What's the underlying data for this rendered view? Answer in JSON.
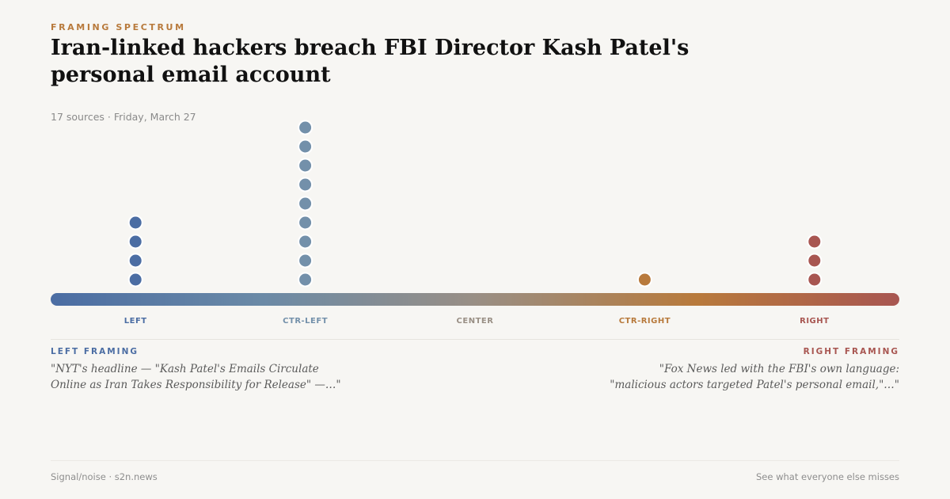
{
  "header": {
    "kicker": "FRAMING SPECTRUM",
    "title": "Iran-linked hackers breach FBI Director Kash Patel's personal email account",
    "meta": "17 sources · Friday, March 27"
  },
  "chart_data": {
    "type": "dot-strip",
    "categories": [
      "LEFT",
      "CTR-LEFT",
      "CENTER",
      "CTR-RIGHT",
      "RIGHT"
    ],
    "counts": [
      4,
      9,
      0,
      1,
      3
    ],
    "colors": [
      "#4b6da3",
      "#7390aa",
      "#998f85",
      "#b87a3c",
      "#a85651"
    ]
  },
  "framing": {
    "left_heading": "LEFT FRAMING",
    "left_quote": "\"NYT's headline — \"Kash Patel's Emails Circulate Online as Iran Takes Responsibility for Release\" —…\"",
    "right_heading": "RIGHT FRAMING",
    "right_quote": "\"Fox News led with the FBI's own language: \"malicious actors targeted Patel's personal email,\"…\""
  },
  "footer": {
    "brand": "Signal/noise · s2n.news",
    "tagline": "See what everyone else misses"
  }
}
